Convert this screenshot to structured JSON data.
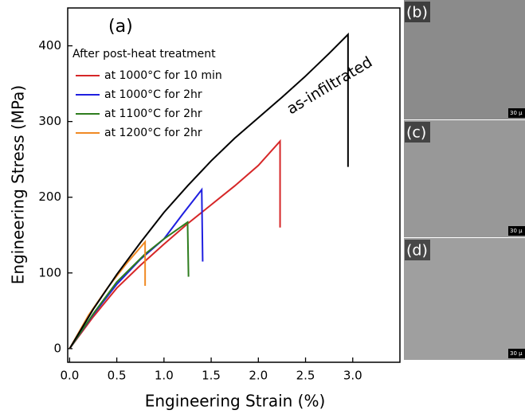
{
  "chart_data": {
    "type": "line",
    "panel_label": "(a)",
    "x_label": "Engineering Strain (%)",
    "y_label": "Engineering Stress (MPa)",
    "xlim": [
      -0.02,
      3.5
    ],
    "ylim": [
      -18,
      450
    ],
    "xticks": [
      {
        "value": 0,
        "label": "0.0"
      },
      {
        "value": 0.5,
        "label": "0.5"
      },
      {
        "value": 1,
        "label": "1.0"
      },
      {
        "value": 1.5,
        "label": "1.5"
      },
      {
        "value": 2,
        "label": "2.0"
      },
      {
        "value": 2.5,
        "label": "2.5"
      },
      {
        "value": 3,
        "label": "3.0"
      }
    ],
    "yticks": [
      0,
      100,
      200,
      300,
      400
    ],
    "legend_title": "After post-heat treatment",
    "legend": "top-left",
    "annotation": "as-infiltrated",
    "series": [
      {
        "name": "at 1000°C for 10 min",
        "color": "#d62728",
        "x": [
          0,
          0.25,
          0.5,
          0.75,
          1.0,
          1.25,
          1.5,
          1.75,
          2.0,
          2.23,
          2.23
        ],
        "values": [
          0,
          42,
          80,
          110,
          138,
          165,
          190,
          215,
          242,
          274,
          160
        ]
      },
      {
        "name": "at 1000°C for 2hr",
        "color": "#1f1fe0",
        "x": [
          0,
          0.25,
          0.5,
          0.75,
          1.0,
          1.2,
          1.4,
          1.41
        ],
        "values": [
          0,
          45,
          85,
          118,
          145,
          178,
          210,
          115
        ]
      },
      {
        "name": "at 1100°C for 2hr",
        "color": "#2e7d1e",
        "x": [
          0,
          0.25,
          0.5,
          0.8,
          1.0,
          1.25,
          1.26
        ],
        "values": [
          0,
          46,
          88,
          125,
          145,
          167,
          95
        ]
      },
      {
        "name": "at 1200°C for 2hr",
        "color": "#f08a24",
        "x": [
          0,
          0.2,
          0.4,
          0.6,
          0.8,
          0.8
        ],
        "values": [
          0,
          44,
          80,
          112,
          141,
          83
        ]
      },
      {
        "color": "#000000",
        "x": [
          0,
          0.25,
          0.5,
          0.75,
          1.0,
          1.25,
          1.5,
          1.75,
          2.0,
          2.25,
          2.5,
          2.75,
          2.95,
          2.95
        ],
        "values": [
          0,
          52,
          98,
          140,
          180,
          215,
          248,
          278,
          305,
          332,
          360,
          390,
          415,
          240
        ]
      }
    ]
  },
  "micrographs": [
    {
      "label": "(b)",
      "scale": "30 µ"
    },
    {
      "label": "(c)",
      "scale": "30 µ"
    },
    {
      "label": "(d)",
      "scale": "30 µ"
    }
  ]
}
